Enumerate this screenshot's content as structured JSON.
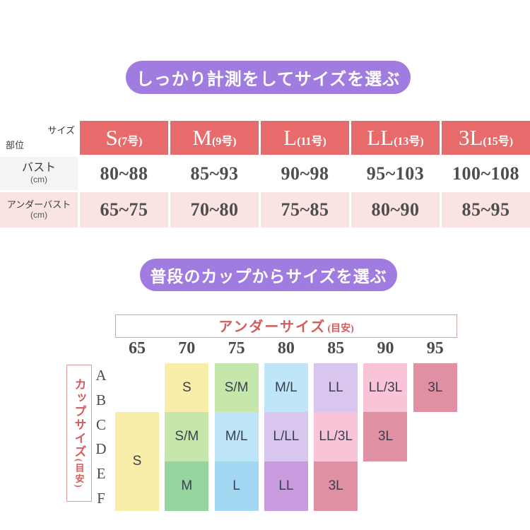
{
  "colors": {
    "badge_purple": "#a07ce0",
    "header_red": "#e86b6b",
    "row_pink": "#f9e4e1",
    "label_gray": "#f5f3f3",
    "accent_red": "#d45c5c"
  },
  "section1": {
    "badge": "しっかり計測をしてサイズを選ぶ",
    "corner": {
      "top_right": "サイズ",
      "bottom_left": "部位"
    },
    "columns": [
      {
        "size": "S",
        "number": "(7号)"
      },
      {
        "size": "M",
        "number": "(9号)"
      },
      {
        "size": "L",
        "number": "(11号)"
      },
      {
        "size": "LL",
        "number": "(13号)"
      },
      {
        "size": "3L",
        "number": "(15号)"
      }
    ],
    "rows": [
      {
        "label": "バスト",
        "unit": "(cm)",
        "values": [
          "80~88",
          "85~93",
          "90~98",
          "95~103",
          "100~108"
        ]
      },
      {
        "label": "アンダーバスト",
        "unit": "(cm)",
        "values": [
          "65~75",
          "70~80",
          "75~85",
          "80~90",
          "85~95"
        ]
      }
    ]
  },
  "section2": {
    "badge": "普段のカップからサイズを選ぶ",
    "under_axis": {
      "title": "アンダーサイズ",
      "note": "(目安)",
      "values": [
        "65",
        "70",
        "75",
        "80",
        "85",
        "90",
        "95"
      ]
    },
    "cup_axis": {
      "title": "カップサイズ",
      "note": "(目安)",
      "letters": [
        "A",
        "B",
        "C",
        "D",
        "E",
        "F"
      ]
    },
    "cells": [
      {
        "label": "S",
        "color": "#f8eda9"
      },
      {
        "label": "S",
        "color": "#f8eda9"
      },
      {
        "label": "S/M",
        "color": "#c6e7ac"
      },
      {
        "label": "M",
        "color": "#96d5a0"
      },
      {
        "label": "S/M",
        "color": "#c6e7ac"
      },
      {
        "label": "M/L",
        "color": "#bee5f8"
      },
      {
        "label": "L",
        "color": "#a2d8f2"
      },
      {
        "label": "M/L",
        "color": "#bee5f8"
      },
      {
        "label": "L/LL",
        "color": "#d9c6ef"
      },
      {
        "label": "LL",
        "color": "#c99ade"
      },
      {
        "label": "LL",
        "color": "#d9c6ef"
      },
      {
        "label": "LL/3L",
        "color": "#f9c4d8"
      },
      {
        "label": "3L",
        "color": "#e18fa3"
      },
      {
        "label": "LL/3L",
        "color": "#f9c4d8"
      },
      {
        "label": "3L",
        "color": "#e18fa3"
      },
      {
        "label": "3L",
        "color": "#e18fa3"
      }
    ]
  },
  "chart_data": [
    {
      "type": "table",
      "title": "しっかり計測をしてサイズを選ぶ",
      "columns": [
        "S(7号)",
        "M(9号)",
        "L(11号)",
        "LL(13号)",
        "3L(15号)"
      ],
      "rows": [
        {
          "label": "バスト(cm)",
          "values": [
            "80~88",
            "85~93",
            "90~98",
            "95~103",
            "100~108"
          ]
        },
        {
          "label": "アンダーバスト(cm)",
          "values": [
            "65~75",
            "70~80",
            "75~85",
            "80~90",
            "85~95"
          ]
        }
      ]
    },
    {
      "type": "heatmap",
      "title": "普段のカップからサイズを選ぶ",
      "xlabel": "アンダーサイズ(目安)",
      "x": [
        "65",
        "70",
        "75",
        "80",
        "85",
        "90",
        "95"
      ],
      "ylabel": "カップサイズ(目安)",
      "y": [
        "A",
        "B",
        "C",
        "D",
        "E",
        "F"
      ],
      "cells": [
        {
          "under": "65",
          "cups": "C-F",
          "size": "S"
        },
        {
          "under": "70",
          "cups": "A-B",
          "size": "S"
        },
        {
          "under": "70",
          "cups": "C-D",
          "size": "S/M"
        },
        {
          "under": "70",
          "cups": "E-F",
          "size": "M"
        },
        {
          "under": "75",
          "cups": "A-B",
          "size": "S/M"
        },
        {
          "under": "75",
          "cups": "C-D",
          "size": "M/L"
        },
        {
          "under": "75",
          "cups": "E-F",
          "size": "L"
        },
        {
          "under": "80",
          "cups": "A-B",
          "size": "M/L"
        },
        {
          "under": "80",
          "cups": "C-D",
          "size": "L/LL"
        },
        {
          "under": "80",
          "cups": "E-F",
          "size": "LL"
        },
        {
          "under": "85",
          "cups": "A-B",
          "size": "LL"
        },
        {
          "under": "85",
          "cups": "C-D",
          "size": "LL/3L"
        },
        {
          "under": "85",
          "cups": "E-F",
          "size": "3L"
        },
        {
          "under": "90",
          "cups": "A-B",
          "size": "LL/3L"
        },
        {
          "under": "90",
          "cups": "C-D",
          "size": "3L"
        },
        {
          "under": "95",
          "cups": "A-B",
          "size": "3L"
        }
      ]
    }
  ]
}
